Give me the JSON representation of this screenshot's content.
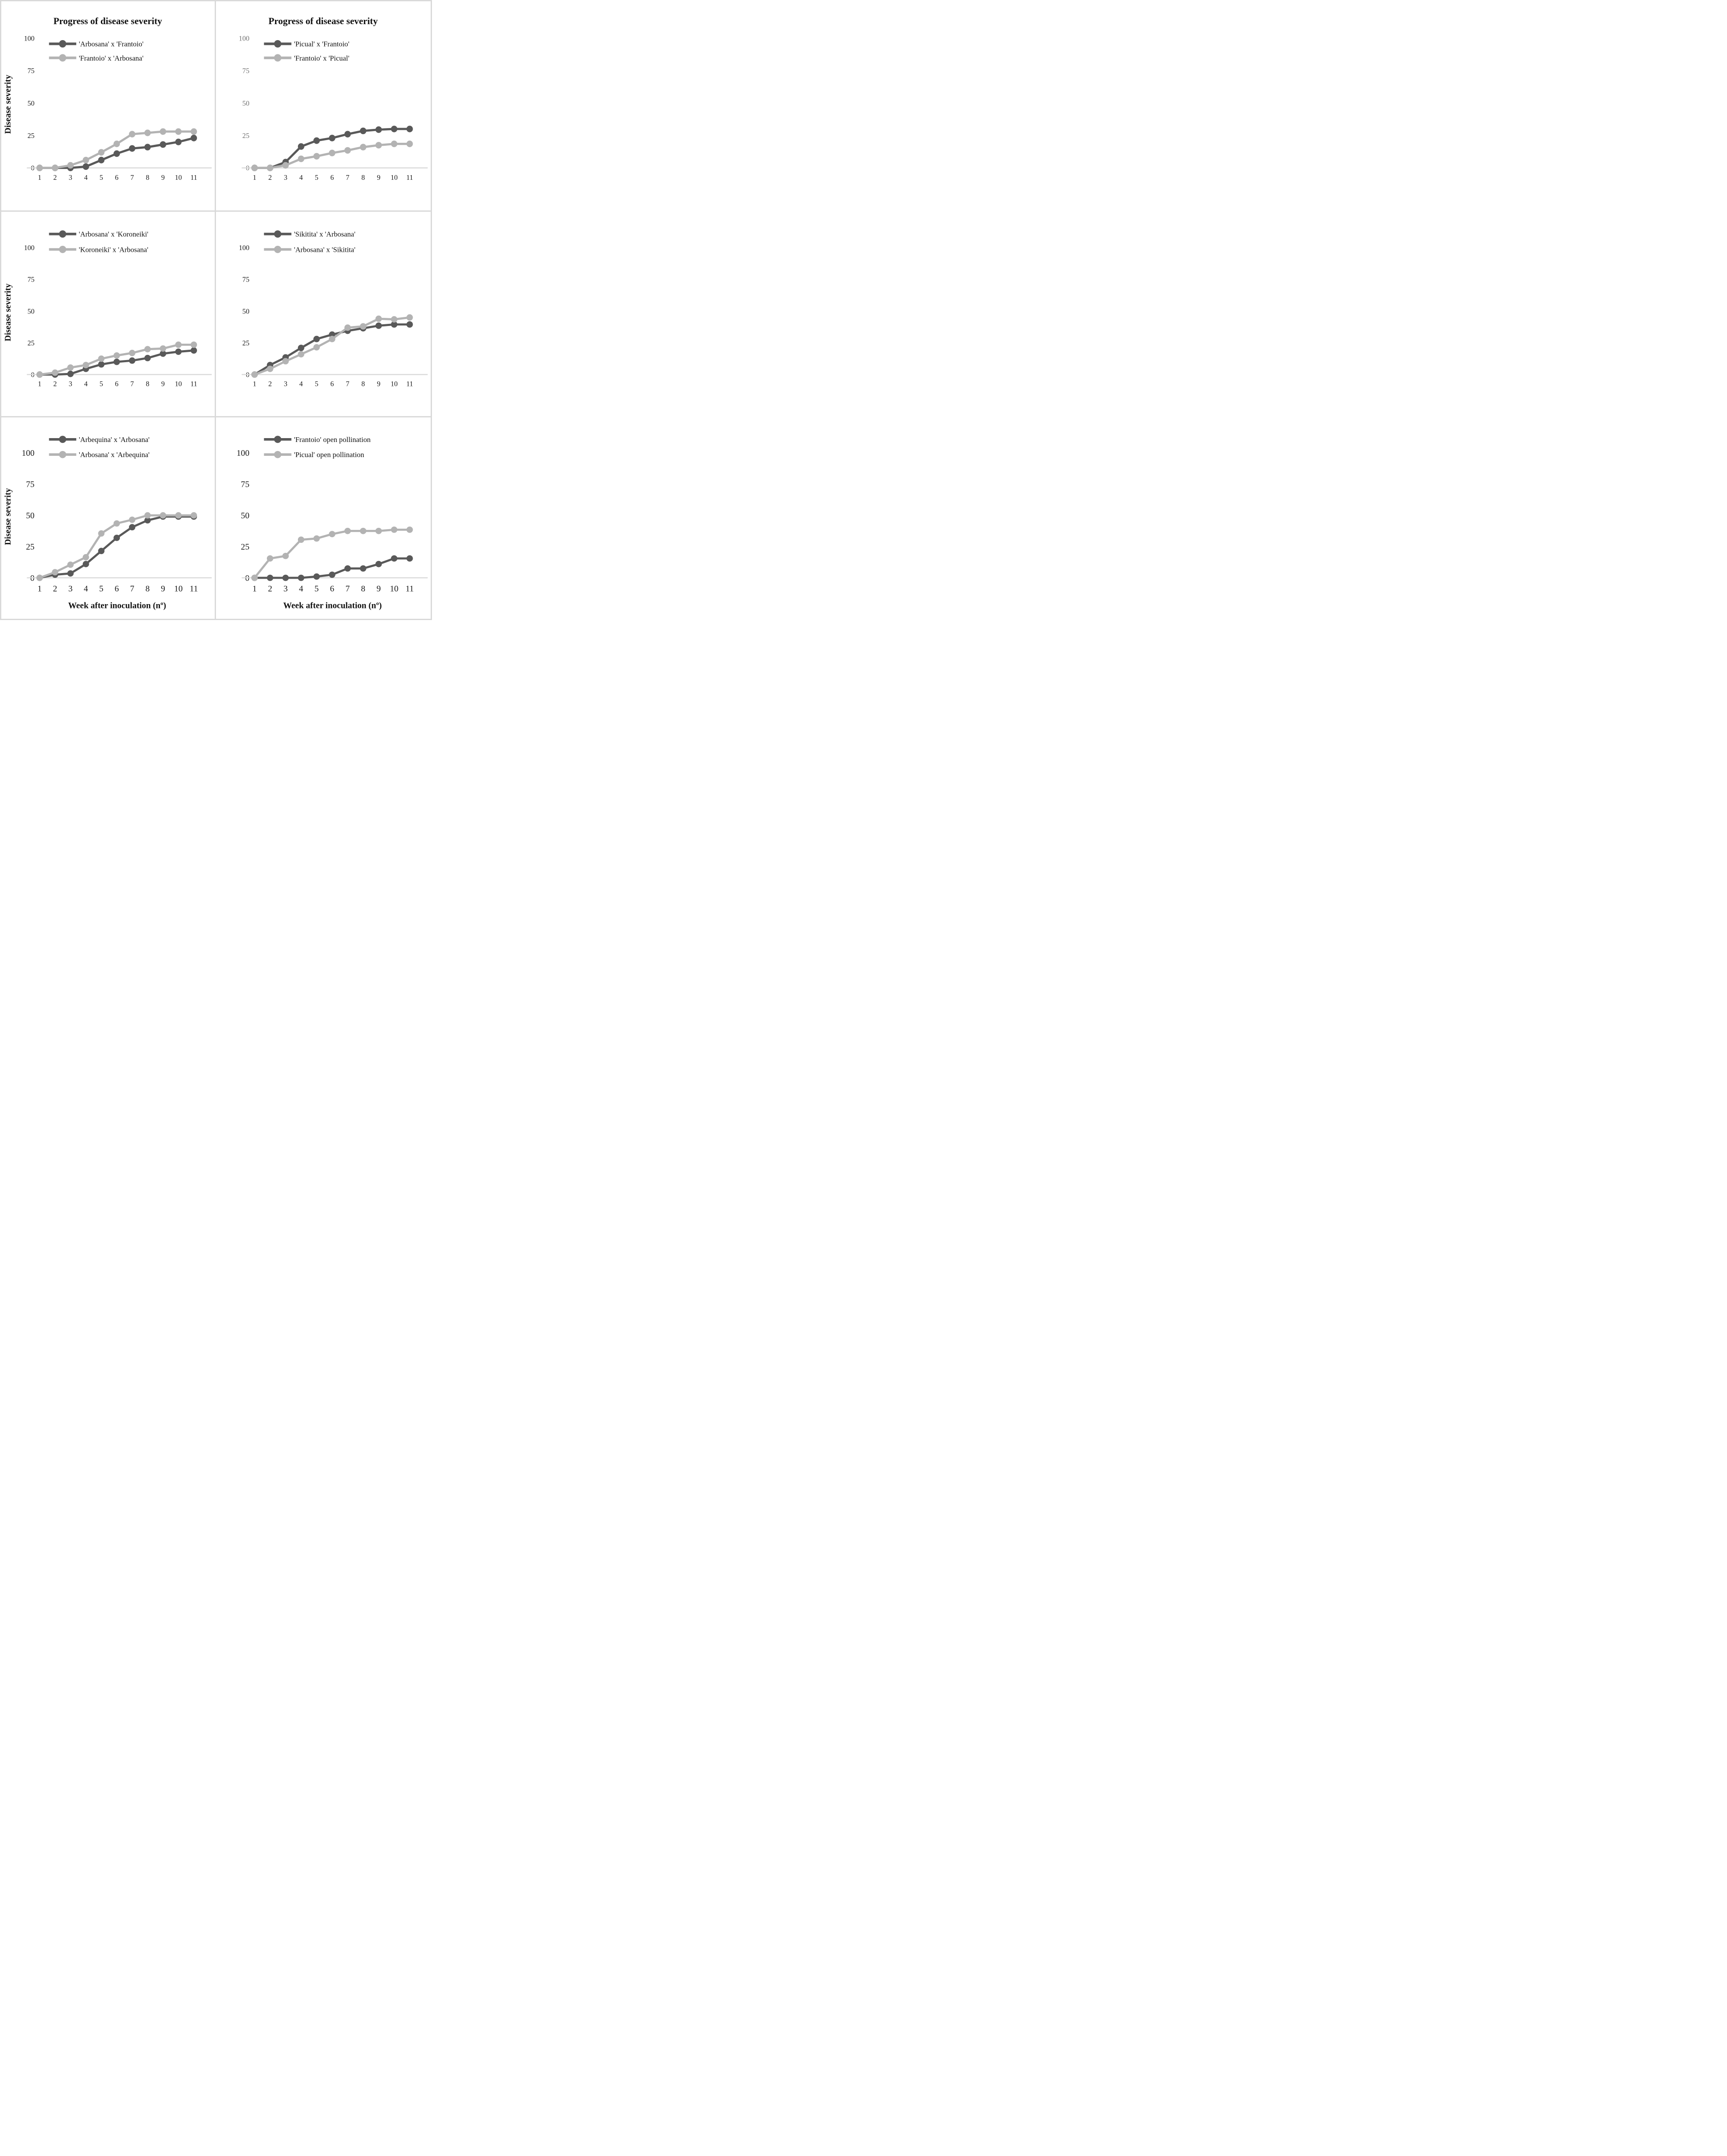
{
  "figure": {
    "column_titles": [
      "Progress of disease severity",
      "Progress of disease severity"
    ],
    "y_axis_title": "Disease severity",
    "x_axis_title": "Week after inoculation (nº)"
  },
  "colors": {
    "dark_series": "#595959",
    "light_series": "#b3b3b3",
    "axis_line": "#d9d9d9",
    "cell_border": "#d9d9d9",
    "tick_text": "#1a1a1a",
    "tick_text_gray": "#6f6f6f",
    "background": "#ffffff"
  },
  "chart_data": [
    {
      "type": "line",
      "title": "Progress of disease severity",
      "ylabel": "Disease severity",
      "xlabel": "",
      "x": [
        1,
        2,
        3,
        4,
        5,
        6,
        7,
        8,
        9,
        10,
        11
      ],
      "ylim": [
        0,
        100
      ],
      "yticks": [
        0,
        25,
        50,
        75,
        100
      ],
      "grid": false,
      "legend_position": "top",
      "ytick_color": "#1a1a1a",
      "large_ticks": false,
      "series": [
        {
          "name": "'Arbosana' x 'Frantoio'",
          "color": "#595959",
          "values": [
            0,
            0,
            0,
            1,
            6,
            11,
            15,
            16,
            18,
            20,
            23
          ]
        },
        {
          "name": "'Frantoio' x 'Arbosana'",
          "color": "#b3b3b3",
          "values": [
            0,
            0,
            2,
            6,
            12,
            18.5,
            26,
            27,
            28,
            28,
            28
          ]
        }
      ]
    },
    {
      "type": "line",
      "title": "Progress of disease severity",
      "ylabel": "",
      "xlabel": "",
      "x": [
        1,
        2,
        3,
        4,
        5,
        6,
        7,
        8,
        9,
        10,
        11
      ],
      "ylim": [
        0,
        100
      ],
      "yticks": [
        0,
        25,
        50,
        75,
        100
      ],
      "grid": false,
      "legend_position": "top",
      "ytick_color": "#6f6f6f",
      "large_ticks": false,
      "series": [
        {
          "name": "'Picual' x 'Frantoio'",
          "color": "#595959",
          "values": [
            0,
            0,
            4.5,
            16.5,
            21,
            23,
            26,
            28.5,
            29.5,
            30,
            30
          ]
        },
        {
          "name": "'Frantoio' x 'Picual'",
          "color": "#b3b3b3",
          "values": [
            0,
            0,
            2,
            7,
            9,
            11.5,
            13.5,
            16,
            17.5,
            18.5,
            18.5
          ]
        }
      ]
    },
    {
      "type": "line",
      "title": "",
      "ylabel": "Disease severity",
      "xlabel": "",
      "x": [
        1,
        2,
        3,
        4,
        5,
        6,
        7,
        8,
        9,
        10,
        11
      ],
      "ylim": [
        0,
        100
      ],
      "yticks": [
        0,
        25,
        50,
        75,
        100
      ],
      "grid": false,
      "legend_position": "top",
      "ytick_color": "#1a1a1a",
      "large_ticks": false,
      "series": [
        {
          "name": "'Arbosana' x 'Koroneiki'",
          "color": "#595959",
          "values": [
            0,
            0,
            0.5,
            4.5,
            8,
            10,
            11,
            13,
            16.5,
            18,
            19
          ]
        },
        {
          "name": "'Koroneiki' x 'Arbosana'",
          "color": "#b3b3b3",
          "values": [
            0,
            1.5,
            5.5,
            7.5,
            12.5,
            15,
            17,
            20,
            20.5,
            23.5,
            23.5
          ]
        }
      ]
    },
    {
      "type": "line",
      "title": "",
      "ylabel": "",
      "xlabel": "",
      "x": [
        1,
        2,
        3,
        4,
        5,
        6,
        7,
        8,
        9,
        10,
        11
      ],
      "ylim": [
        0,
        100
      ],
      "yticks": [
        0,
        25,
        50,
        75,
        100
      ],
      "grid": false,
      "legend_position": "top",
      "ytick_color": "#1a1a1a",
      "large_ticks": false,
      "series": [
        {
          "name": "'Sikitita' x 'Arbosana'",
          "color": "#595959",
          "values": [
            0,
            7.5,
            13.5,
            21,
            28,
            31.5,
            34.5,
            36.5,
            38.5,
            39.5,
            39.5
          ]
        },
        {
          "name": "'Arbosana' x 'Sikitita'",
          "color": "#b3b3b3",
          "values": [
            0,
            4.5,
            10.5,
            16,
            21.5,
            28,
            37,
            38,
            44,
            43.5,
            45
          ]
        }
      ]
    },
    {
      "type": "line",
      "title": "",
      "ylabel": "Disease severity",
      "xlabel": "Week after inoculation (nº)",
      "x": [
        1,
        2,
        3,
        4,
        5,
        6,
        7,
        8,
        9,
        10,
        11
      ],
      "ylim": [
        0,
        100
      ],
      "yticks": [
        0,
        25,
        50,
        75,
        100
      ],
      "grid": false,
      "legend_position": "top",
      "ytick_color": "#1a1a1a",
      "large_ticks": true,
      "series": [
        {
          "name": "'Arbequina' x 'Arbosana'",
          "color": "#595959",
          "values": [
            0,
            2.5,
            3.5,
            11,
            21.5,
            32,
            40.5,
            46,
            49,
            49,
            49
          ]
        },
        {
          "name": "'Arbosana' x 'Arbequina'",
          "color": "#b3b3b3",
          "values": [
            0,
            4.5,
            10.5,
            16.5,
            35.5,
            43.5,
            46.5,
            50,
            50,
            50,
            50
          ]
        }
      ]
    },
    {
      "type": "line",
      "title": "",
      "ylabel": "",
      "xlabel": "Week after inoculation (nº)",
      "x": [
        1,
        2,
        3,
        4,
        5,
        6,
        7,
        8,
        9,
        10,
        11
      ],
      "ylim": [
        0,
        100
      ],
      "yticks": [
        0,
        25,
        50,
        75,
        100
      ],
      "grid": false,
      "legend_position": "top",
      "ytick_color": "#1a1a1a",
      "large_ticks": true,
      "series": [
        {
          "name": "'Frantoio' open pollination",
          "color": "#595959",
          "values": [
            0,
            0,
            0,
            0,
            1,
            2.5,
            7.5,
            7.5,
            11,
            15.5,
            15.5
          ]
        },
        {
          "name": "'Picual' open pollination",
          "color": "#b3b3b3",
          "values": [
            0,
            15.5,
            17.5,
            30.5,
            31.5,
            35,
            37.5,
            37.5,
            37.5,
            38.5,
            38.5
          ]
        }
      ]
    }
  ]
}
